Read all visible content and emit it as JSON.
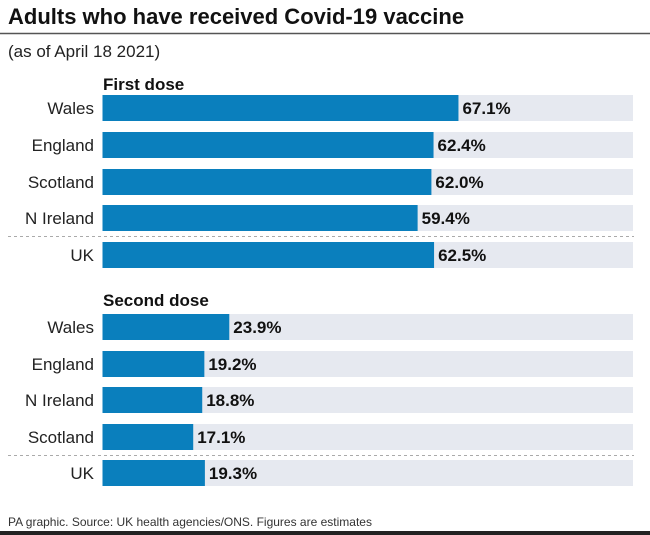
{
  "chart_data": [
    {
      "type": "bar",
      "orientation": "horizontal",
      "title": "Adults who have received Covid-19 vaccine",
      "subtitle": "(as of April 18 2021)",
      "section": "First dose",
      "categories": [
        "Wales",
        "England",
        "Scotland",
        "N Ireland",
        "UK"
      ],
      "values": [
        67.1,
        62.4,
        62.0,
        59.4,
        62.5
      ],
      "labels": [
        "67.1%",
        "62.4%",
        "62.0%",
        "59.4%",
        "62.5%"
      ],
      "xlim": [
        0,
        100
      ]
    },
    {
      "type": "bar",
      "orientation": "horizontal",
      "section": "Second dose",
      "categories": [
        "Wales",
        "England",
        "N Ireland",
        "Scotland",
        "UK"
      ],
      "values": [
        23.9,
        19.2,
        18.8,
        17.1,
        19.3
      ],
      "labels": [
        "23.9%",
        "19.2%",
        "18.8%",
        "17.1%",
        "19.3%"
      ],
      "xlim": [
        0,
        100
      ]
    }
  ],
  "footer": "PA graphic. Source: UK health agencies/ONS. Figures are estimates",
  "colors": {
    "bar": "#0a7fbd",
    "track": "#e6e9f0",
    "text": "#111111"
  }
}
